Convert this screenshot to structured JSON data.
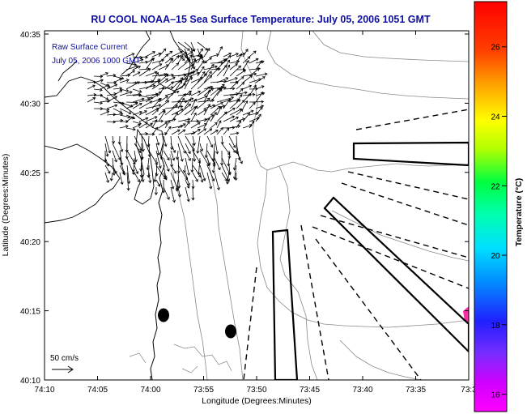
{
  "title": "RU COOL  NOAA–15  Sea Surface Temperature:  July 05, 2006 1051 GMT",
  "legend_text": {
    "line1": "Raw Surface Current",
    "line2": "July 05, 2006 1000 GMT"
  },
  "scale_label": "50 cm/s",
  "x_axis": {
    "label": "Longitude (Degrees:Minutes)",
    "ticks": [
      "74:10",
      "74:05",
      "74:00",
      "73:55",
      "73:50",
      "73:45",
      "73:40",
      "73:35",
      "73:3"
    ]
  },
  "y_axis": {
    "label": "Latitude (Degrees:Minutes)",
    "ticks": [
      "40:35",
      "40:30",
      "40:25",
      "40:20",
      "40:15",
      "40:10"
    ]
  },
  "colorbar": {
    "label": "Temperature (°C)",
    "ticks": [
      "26",
      "24",
      "22",
      "20",
      "18",
      "16"
    ],
    "range": [
      15.5,
      27.3
    ]
  },
  "colors": {
    "title": "#1010a0",
    "legend_text": "#1010a0",
    "frame": "#000000",
    "ocean": "#ffffff",
    "contour": "#888888",
    "warm_patch": "#ff2aa6"
  }
}
